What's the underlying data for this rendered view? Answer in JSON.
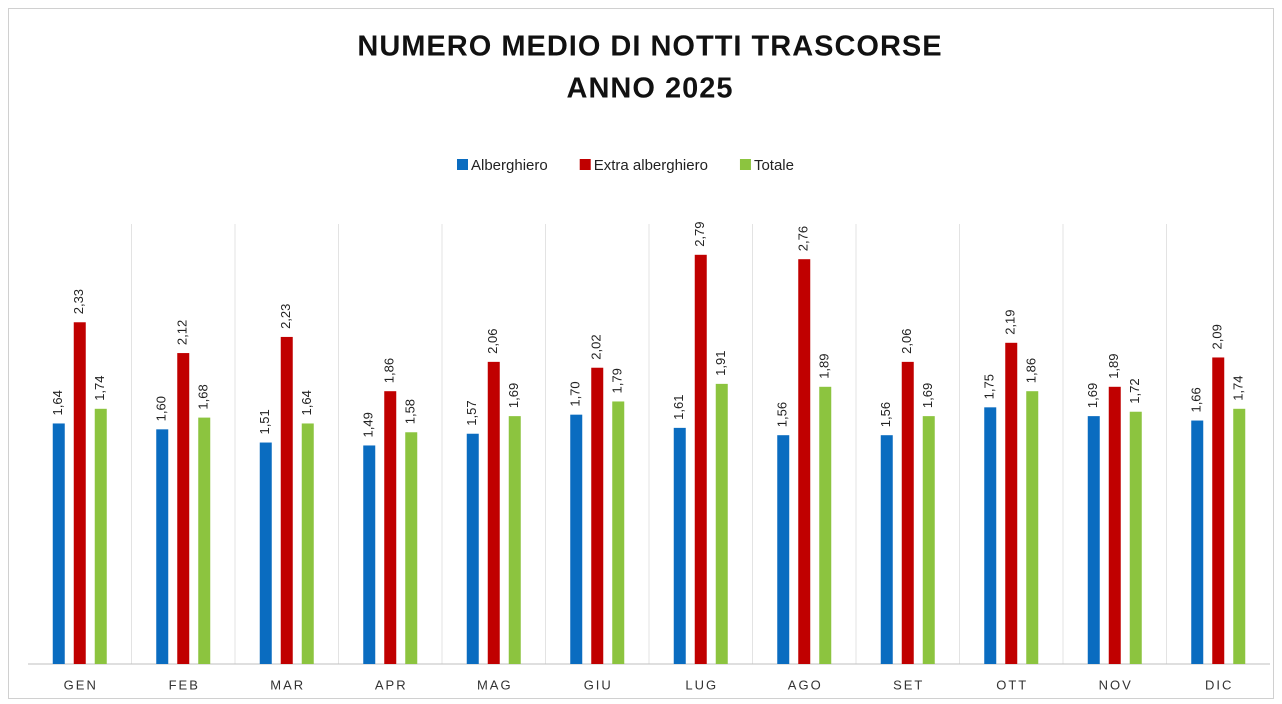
{
  "chart_data": {
    "type": "bar",
    "title": "NUMERO MEDIO DI NOTTI TRASCORSE",
    "subtitle": "ANNO 2025",
    "categories": [
      "GEN",
      "FEB",
      "MAR",
      "APR",
      "MAG",
      "GIU",
      "LUG",
      "AGO",
      "SET",
      "OTT",
      "NOV",
      "DIC"
    ],
    "series": [
      {
        "name": "Alberghiero",
        "color": "#0a6cc0",
        "values": [
          1.64,
          1.6,
          1.51,
          1.49,
          1.57,
          1.7,
          1.61,
          1.56,
          1.56,
          1.75,
          1.69,
          1.66
        ],
        "value_labels": [
          "1,64",
          "1,60",
          "1,51",
          "1,49",
          "1,57",
          "1,70",
          "1,61",
          "1,56",
          "1,56",
          "1,75",
          "1,69",
          "1,66"
        ]
      },
      {
        "name": "Extra alberghiero",
        "color": "#c00000",
        "values": [
          2.33,
          2.12,
          2.23,
          1.86,
          2.06,
          2.02,
          2.79,
          2.76,
          2.06,
          2.19,
          1.89,
          2.09
        ],
        "value_labels": [
          "2,33",
          "2,12",
          "2,23",
          "1,86",
          "2,06",
          "2,02",
          "2,79",
          "2,76",
          "2,06",
          "2,19",
          "1,89",
          "2,09"
        ]
      },
      {
        "name": "Totale",
        "color": "#8cc43f",
        "values": [
          1.74,
          1.68,
          1.64,
          1.58,
          1.69,
          1.79,
          1.91,
          1.89,
          1.69,
          1.86,
          1.72,
          1.74
        ],
        "value_labels": [
          "1,74",
          "1,68",
          "1,64",
          "1,58",
          "1,69",
          "1,79",
          "1,91",
          "1,89",
          "1,69",
          "1,86",
          "1,72",
          "1,74"
        ]
      }
    ],
    "ylim": [
      0,
      3
    ]
  }
}
